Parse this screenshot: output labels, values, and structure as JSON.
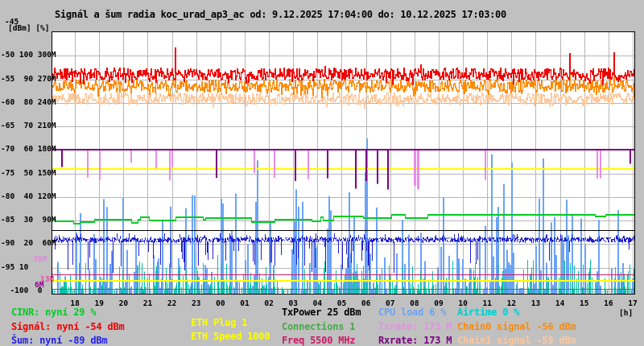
{
  "title": "Signál a šum radia koc_urad_ap3_ac od: 9.12.2025 17:04:00 do: 10.12.2025 17:03:00",
  "axes": {
    "unit_label": "[dBm] [%]",
    "top_label": "-45",
    "x_unit": "[h]",
    "x_ticks": [
      "18",
      "19",
      "20",
      "21",
      "22",
      "23",
      "00",
      "01",
      "02",
      "03",
      "04",
      "05",
      "06",
      "07",
      "08",
      "09",
      "10",
      "11",
      "12",
      "13",
      "14",
      "15",
      "16",
      "17"
    ],
    "y_rows": [
      {
        "text": "-50 100 300M",
        "dbm": -50
      },
      {
        "text": "-55  90 270M",
        "dbm": -55
      },
      {
        "text": "-60  80 240M",
        "dbm": -60
      },
      {
        "text": "-65  70 210M",
        "dbm": -65
      },
      {
        "text": "-70  60 180M",
        "dbm": -70
      },
      {
        "text": "-75  50 150M",
        "dbm": -75
      },
      {
        "text": "-80  40 120M",
        "dbm": -80
      },
      {
        "text": "-85  30  90M",
        "dbm": -85
      },
      {
        "text": "-90  20  60M",
        "dbm": -90
      },
      {
        "text": "-95 10",
        "dbm": -95
      },
      {
        "text": "  -100  0",
        "dbm": -100
      }
    ],
    "side_markers": [
      {
        "text": "39M",
        "m": 39,
        "color": "#DD88DD",
        "x": 41
      },
      {
        "text": "13M",
        "m": 13,
        "color": "#E34FA0",
        "x": 50
      },
      {
        "text": "6M",
        "m": 6,
        "color": "#880088",
        "x": 43
      }
    ]
  },
  "legend": {
    "columns": [
      {
        "x": 14,
        "rows": [
          382,
          400,
          417
        ],
        "entries": [
          {
            "label": "CINR: nyní 29 %",
            "color": "#00CC22"
          },
          {
            "label": "Signál: nyní -54 dBm",
            "color": "#F00000"
          },
          {
            "label": "Šum: nyní -89 dBm",
            "color": "#2222EE"
          }
        ]
      },
      {
        "x": 237,
        "rows": [
          395,
          412
        ],
        "entries": [
          {
            "label": "ETH Plug 1",
            "color": "#FFFF00"
          },
          {
            "label": "ETH Speed 1000",
            "color": "#FFFF00"
          }
        ]
      },
      {
        "x": 350,
        "rows": [
          382,
          400,
          417
        ],
        "entries": [
          {
            "label": "TxPower 25 dBm",
            "color": "#000000"
          },
          {
            "label": "Connections 1",
            "color": "#44AA44"
          },
          {
            "label": "Freq 5500 MHz",
            "color": "#D01868"
          }
        ]
      },
      {
        "x": 470,
        "rows": [
          382,
          400,
          417
        ],
        "entries": [
          {
            "label": "CPU load 6 %",
            "color": "#6BA3F5"
          },
          {
            "label": "Txrate: 173 M",
            "color": "#E88CE8"
          },
          {
            "label": "Rxrate: 173 M",
            "color": "#7A0080"
          }
        ]
      },
      {
        "x": 568,
        "rows": [
          382,
          400,
          417
        ],
        "entries": [
          {
            "label": "Airtime 0 %",
            "color": "#00CCCC"
          },
          {
            "label": "Chain0 signal -56 dBm",
            "color": "#FF8A00"
          },
          {
            "label": "Chain1 signal -59 dBm",
            "color": "#FFC89B"
          }
        ]
      }
    ]
  },
  "chart_data": {
    "type": "line",
    "title": "Signál a šum radia koc_urad_ap3_ac",
    "time_start": "9.12.2025 17:04:00",
    "time_end": "10.12.2025 17:03:00",
    "x_range_hours": 24,
    "xlabel": "[h]",
    "y_scales": {
      "dbm": [
        -45,
        -100
      ],
      "percent": [
        0,
        100
      ],
      "mbps": [
        0,
        300
      ]
    },
    "grid": true,
    "background": "#FFFFFF",
    "frame_color": "#000000",
    "grid_color": "#B6B6B6",
    "series": [
      {
        "name": "cpu_load",
        "label": "CPU load",
        "unit": "%",
        "current": 6,
        "color": "#6BA3F5",
        "painter": "bottom_spikes",
        "seed": 11,
        "p0": 0.16,
        "p1": 0.55,
        "hmin": 1,
        "hmax": 46,
        "pow": 2.2,
        "rare_h": 66,
        "w": 2
      },
      {
        "name": "airtime",
        "label": "Airtime",
        "unit": "%",
        "current": 0,
        "color": "#00C2A8",
        "painter": "bottom_spikes",
        "seed": 12,
        "p0": 0.22,
        "p1": 0.42,
        "hmin": 0.5,
        "hmax": 13,
        "pow": 2.4,
        "rare_h": 19,
        "w": 1
      },
      {
        "name": "eth_speed",
        "label": "ETH Speed",
        "value": 1000,
        "color": "#FFFF00",
        "painter": "hline",
        "pct": 51.8,
        "thick": 2
      },
      {
        "name": "eth_plug",
        "label": "ETH Plug",
        "value": 1,
        "color": "#FFFF00",
        "painter": "hline",
        "pct": 4.3,
        "thick": 2
      },
      {
        "name": "freq",
        "label": "Freq",
        "value": 5500,
        "unit": "MHz",
        "color": "#D01868",
        "painter": "hline",
        "pct": 7.3,
        "thick": 1
      },
      {
        "name": "connections",
        "label": "Connections",
        "value": 1,
        "color": "#2E8B2E",
        "painter": "hline",
        "pct": 0.9,
        "thick": 1
      },
      {
        "name": "txpower",
        "label": "TxPower",
        "value": 25,
        "unit": "dBm",
        "color": "#000000",
        "painter": "hline",
        "pct": 26,
        "thick": 1
      },
      {
        "name": "cinr",
        "label": "CINR",
        "unit": "%",
        "current": 29,
        "color": "#00CC22",
        "painter": "steps",
        "seed": 13,
        "base": 30.7,
        "min": 28.6,
        "max": 32.8
      },
      {
        "name": "sum_noise",
        "label": "Šum",
        "unit": "dBm",
        "current": -89,
        "color": "#2020CC",
        "painter": "noisyline",
        "seed": 14,
        "base": -89.0,
        "jitter": 0.55,
        "spike_prob": 0.05,
        "busy_prob": 0.17,
        "busy_t0": 3.2,
        "busy_t1": 13.2,
        "spike_min": 1.5,
        "spike_max": 6.5
      },
      {
        "name": "txrate",
        "label": "Txrate",
        "unit": "M",
        "current": 173,
        "color": "#E88CE8",
        "painter": "baseline_downspikes",
        "seed": 15,
        "base": 180,
        "prob": 0.012,
        "drop_min": 15,
        "drop_max": 45,
        "w": 2,
        "clusters": [
          {
            "t0": 1.0,
            "t1": 7.6,
            "prob": 0.045,
            "drop_min": 15,
            "drop_max": 40,
            "w": 2
          },
          {
            "t0": 14.9,
            "t1": 15.12,
            "prob": 0.85,
            "drop_min": 45,
            "drop_max": 55,
            "w": 3
          },
          {
            "t0": 22.25,
            "t1": 22.65,
            "prob": 0.25,
            "drop_min": 25,
            "drop_max": 45,
            "w": 2
          }
        ]
      },
      {
        "name": "rxrate",
        "label": "Rxrate",
        "unit": "M",
        "current": 173,
        "color": "#7A0080",
        "painter": "baseline_downspikes",
        "seed": 16,
        "base": 180,
        "prob": 0.008,
        "drop_min": 15,
        "drop_max": 40,
        "w": 2,
        "clusters": [
          {
            "t0": 10.6,
            "t1": 14.2,
            "prob": 0.05,
            "drop_min": 20,
            "drop_max": 55,
            "w": 2
          },
          {
            "t0": 1.2,
            "t1": 2.2,
            "prob": 0.03,
            "drop_min": 15,
            "drop_max": 35,
            "w": 2
          }
        ]
      },
      {
        "name": "chain1_signal",
        "label": "Chain1 signal",
        "unit": "dBm",
        "current": -59,
        "color": "#FFC89B",
        "painter": "band",
        "seed": 17,
        "base": -58.9,
        "jitter": 1.1
      },
      {
        "name": "chain0_signal",
        "label": "Chain0 signal",
        "unit": "dBm",
        "current": -56,
        "color": "#FF8A00",
        "painter": "band",
        "seed": 18,
        "base": -56.2,
        "jitter": 1.25,
        "spikes": [
          {
            "t": 5.08,
            "v": -49.3
          },
          {
            "t": 21.35,
            "v": -50.6
          },
          {
            "t": 23.17,
            "v": -50.2
          }
        ]
      },
      {
        "name": "signal",
        "label": "Signál",
        "unit": "dBm",
        "current": -54,
        "color": "#F00000",
        "painter": "band",
        "seed": 19,
        "base": -53.7,
        "jitter": 1.2,
        "spikes": [
          {
            "t": 5.08,
            "v": -48.2
          },
          {
            "t": 11.25,
            "v": -52.2
          },
          {
            "t": 15.2,
            "v": -51.8
          },
          {
            "t": 21.35,
            "v": -49.4
          },
          {
            "t": 23.17,
            "v": -49.2
          }
        ]
      }
    ]
  }
}
